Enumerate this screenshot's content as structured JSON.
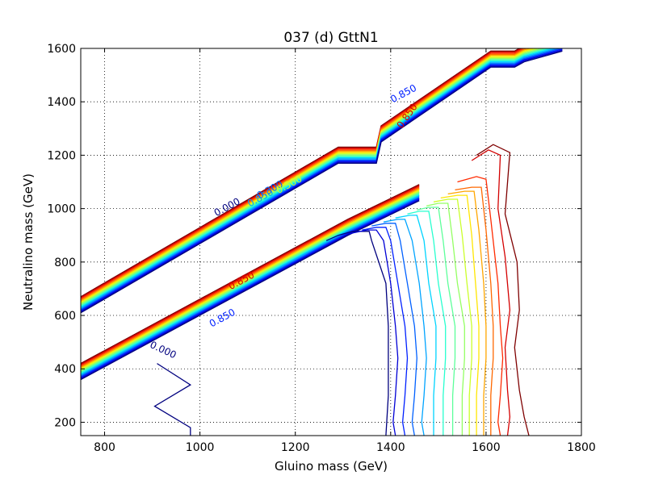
{
  "chart_data": {
    "type": "contour",
    "title": "037 (d) GttN1",
    "xlabel": "Gluino mass (GeV)",
    "ylabel": "Neutralino mass (GeV)",
    "xlim": [
      750,
      1800
    ],
    "ylim": [
      150,
      1600
    ],
    "xticks": [
      800,
      1000,
      1200,
      1400,
      1600,
      1800
    ],
    "yticks": [
      200,
      400,
      600,
      800,
      1000,
      1200,
      1400,
      1600
    ],
    "grid": true,
    "colormap": [
      "#00007f",
      "#0000d5",
      "#0020ff",
      "#0060ff",
      "#00a4ff",
      "#00d4ff",
      "#27ffcf",
      "#5dff9a",
      "#94ff63",
      "#cbff2c",
      "#ffe600",
      "#ffa600",
      "#ff6800",
      "#ff2a00",
      "#d40000",
      "#7f0000"
    ],
    "band_upper": {
      "x": [
        750,
        1290,
        1370,
        1380,
        1610,
        1660,
        1680,
        1760
      ],
      "y": [
        640,
        1200,
        1200,
        1280,
        1560,
        1560,
        1580,
        1620
      ],
      "spread": 60
    },
    "band_lower": {
      "x": [
        750,
        1310,
        1460
      ],
      "y": [
        390,
        930,
        1060
      ],
      "spread": 60
    },
    "contour_levels": [
      {
        "x": [
          1265,
          1290,
          1320,
          1355,
          1360,
          1390,
          1395,
          1395,
          1395,
          1390
        ],
        "y": [
          880,
          900,
          915,
          915,
          880,
          720,
          560,
          440,
          300,
          150
        ]
      },
      {
        "x": [
          1310,
          1350,
          1370,
          1385,
          1400,
          1410,
          1415,
          1410,
          1405,
          1410
        ],
        "y": [
          905,
          920,
          920,
          880,
          720,
          560,
          440,
          300,
          200,
          150
        ]
      },
      {
        "x": [
          1340,
          1370,
          1390,
          1400,
          1415,
          1430,
          1435,
          1430,
          1425,
          1430
        ],
        "y": [
          920,
          930,
          930,
          880,
          720,
          560,
          440,
          300,
          200,
          150
        ]
      },
      {
        "x": [
          1360,
          1390,
          1410,
          1420,
          1435,
          1450,
          1455,
          1450,
          1445,
          1450
        ],
        "y": [
          935,
          945,
          945,
          880,
          720,
          560,
          440,
          300,
          200,
          150
        ]
      },
      {
        "x": [
          1385,
          1415,
          1430,
          1445,
          1460,
          1470,
          1475,
          1470,
          1465,
          1470
        ],
        "y": [
          950,
          960,
          960,
          880,
          720,
          560,
          440,
          300,
          200,
          150
        ]
      },
      {
        "x": [
          1410,
          1440,
          1455,
          1470,
          1480,
          1495,
          1495,
          1490,
          1490,
          1490
        ],
        "y": [
          965,
          975,
          975,
          880,
          720,
          560,
          440,
          300,
          200,
          150
        ]
      },
      {
        "x": [
          1435,
          1460,
          1480,
          1490,
          1500,
          1515,
          1515,
          1510,
          1510,
          1510
        ],
        "y": [
          980,
          990,
          990,
          880,
          720,
          560,
          440,
          300,
          200,
          150
        ]
      },
      {
        "x": [
          1455,
          1480,
          1500,
          1510,
          1520,
          1535,
          1535,
          1530,
          1530,
          1530
        ],
        "y": [
          995,
          1005,
          1005,
          880,
          720,
          560,
          440,
          300,
          200,
          150
        ]
      },
      {
        "x": [
          1475,
          1500,
          1520,
          1530,
          1540,
          1555,
          1555,
          1550,
          1550,
          1550
        ],
        "y": [
          1010,
          1020,
          1020,
          880,
          720,
          560,
          440,
          300,
          200,
          150
        ]
      },
      {
        "x": [
          1490,
          1520,
          1540,
          1550,
          1560,
          1570,
          1570,
          1565,
          1565,
          1565
        ],
        "y": [
          1025,
          1035,
          1035,
          900,
          720,
          560,
          440,
          300,
          200,
          150
        ]
      },
      {
        "x": [
          1505,
          1540,
          1560,
          1570,
          1578,
          1585,
          1585,
          1580,
          1580,
          1580
        ],
        "y": [
          1040,
          1050,
          1050,
          900,
          720,
          560,
          440,
          300,
          200,
          150
        ]
      },
      {
        "x": [
          1520,
          1555,
          1575,
          1585,
          1595,
          1600,
          1600,
          1595,
          1595,
          1595
        ],
        "y": [
          1055,
          1065,
          1065,
          920,
          720,
          560,
          440,
          300,
          200,
          150
        ]
      },
      {
        "x": [
          1535,
          1570,
          1590,
          1600,
          1610,
          1615,
          1615,
          1610,
          1610,
          1610
        ],
        "y": [
          1070,
          1080,
          1080,
          920,
          720,
          560,
          440,
          300,
          200,
          150
        ]
      },
      {
        "x": [
          1540,
          1580,
          1600,
          1610,
          1625,
          1630,
          1635,
          1630,
          1625,
          1630
        ],
        "y": [
          1100,
          1120,
          1110,
          960,
          720,
          560,
          440,
          300,
          200,
          150
        ]
      },
      {
        "x": [
          1570,
          1605,
          1630,
          1625,
          1640,
          1650,
          1640,
          1645,
          1650,
          1645
        ],
        "y": [
          1180,
          1220,
          1200,
          1000,
          820,
          620,
          480,
          320,
          220,
          150
        ]
      },
      {
        "x": [
          1580,
          1615,
          1650,
          1640,
          1665,
          1670,
          1660,
          1670,
          1680,
          1690
        ],
        "y": [
          1200,
          1240,
          1210,
          980,
          800,
          620,
          480,
          320,
          220,
          150
        ]
      }
    ],
    "bottom_left_contour": {
      "x": [
        910,
        980,
        905,
        980,
        980
      ],
      "y": [
        420,
        340,
        260,
        180,
        150
      ]
    },
    "contour_labels": [
      {
        "text": "0.000",
        "x": 1060,
        "y": 995,
        "angle": -28,
        "color": "#00007f"
      },
      {
        "text": "0.850",
        "x": 1130,
        "y": 1030,
        "angle": -28,
        "color": "#00a4ff"
      },
      {
        "text": "0.300",
        "x": 1150,
        "y": 1060,
        "angle": -28,
        "color": "#0060ff"
      },
      {
        "text": "0.500",
        "x": 1190,
        "y": 1080,
        "angle": -28,
        "color": "#cbff2c"
      },
      {
        "text": "0.850",
        "x": 1430,
        "y": 1420,
        "angle": -28,
        "color": "#0020ff"
      },
      {
        "text": "0.850",
        "x": 1440,
        "y": 1340,
        "angle": -55,
        "color": "#d40000"
      },
      {
        "text": "0.850",
        "x": 1050,
        "y": 580,
        "angle": -28,
        "color": "#0020ff"
      },
      {
        "text": "0.850",
        "x": 1090,
        "y": 720,
        "angle": -28,
        "color": "#d40000"
      },
      {
        "text": "0.000",
        "x": 920,
        "y": 460,
        "angle": 25,
        "color": "#00007f"
      }
    ]
  }
}
